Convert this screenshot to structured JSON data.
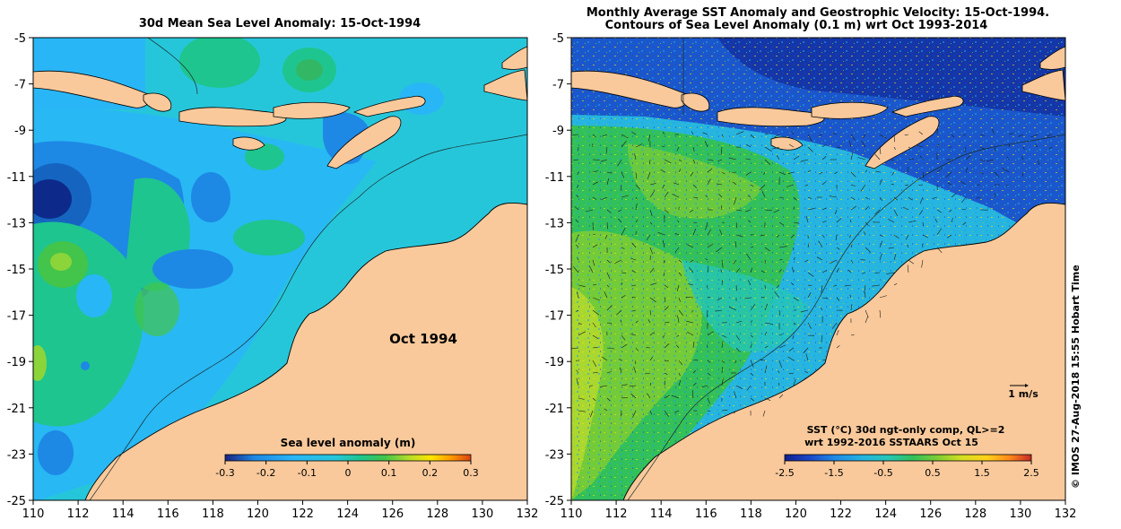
{
  "left_map": {
    "title": "30d Mean Sea Level Anomaly: 15-Oct-1994",
    "annotation": "Oct 1994",
    "colorbar": {
      "title": "Sea level anomaly (m)",
      "ticks": [
        "-0.3",
        "-0.2",
        "-0.1",
        "0",
        "0.1",
        "0.2",
        "0.3"
      ],
      "colors": [
        "#1a237e",
        "#1e88e5",
        "#29b6f6",
        "#26c6da",
        "#1ec58f",
        "#43c44a",
        "#b6dd2a",
        "#ffe600",
        "#ff9800",
        "#d84315"
      ]
    }
  },
  "right_map": {
    "title_line1": "Monthly Average SST Anomaly  and Geostrophic Velocity: 15-Oct-1994.",
    "title_line2": "Contours of Sea Level Anomaly (0.1 m) wrt Oct 1993-2014",
    "velocity_scale_label": "1 m/s",
    "legend_line1": "SST (°C) 30d ngt-only comp, QL>=2",
    "legend_line2": "wrt 1992-2016 SSTAARS Oct 15",
    "colorbar": {
      "ticks": [
        "-2.5",
        "-1.5",
        "-0.5",
        "0.5",
        "1.5",
        "2.5"
      ],
      "colors": [
        "#10208f",
        "#1a46c8",
        "#1e88e5",
        "#26b5e0",
        "#26c6b6",
        "#32c05a",
        "#7fcd34",
        "#d6e022",
        "#ffd21a",
        "#ff8a1a",
        "#c62828"
      ]
    }
  },
  "axes": {
    "x_ticks": [
      "110",
      "112",
      "114",
      "116",
      "118",
      "120",
      "122",
      "124",
      "126",
      "128",
      "130",
      "132"
    ],
    "y_ticks": [
      "-5",
      "-7",
      "-9",
      "-11",
      "-13",
      "-15",
      "-17",
      "-19",
      "-21",
      "-23",
      "-25"
    ]
  },
  "copyright": "© IMOS 27-Aug-2018 15:55 Hobart Time",
  "colors": {
    "land": "#f9c99b",
    "ocean_shelf": "#27c9cf",
    "background": "#ffffff"
  }
}
